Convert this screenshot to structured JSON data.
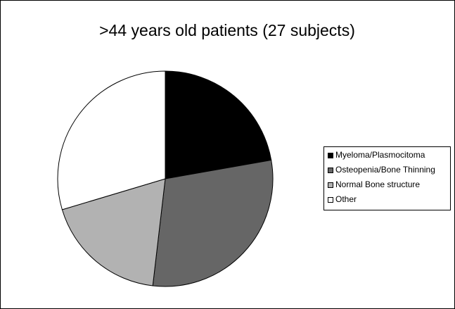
{
  "chart_data": {
    "type": "pie",
    "title": ">44 years old patients (27 subjects)",
    "categories": [
      "Myeloma/Plasmocitoma",
      "Osteopenia/Bone Thinning",
      "Normal Bone structure",
      "Other"
    ],
    "values": [
      6,
      8,
      5,
      8
    ],
    "colors": [
      "#000000",
      "#666666",
      "#b2b2b2",
      "#ffffff"
    ],
    "legend": "right"
  }
}
